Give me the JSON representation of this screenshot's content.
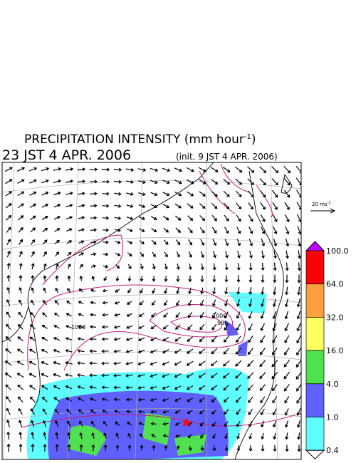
{
  "header": {
    "title": "PRECIPITATION INTENSITY (mm hour",
    "title_exponent": "-1",
    "title_close": ")",
    "valid_time": "23 JST 4 APR. 2006",
    "init_time": "(init. 9 JST 4 APR. 2006)"
  },
  "wind_legend": {
    "label": "20 ms",
    "exponent": "-1"
  },
  "contour_labels": [
    "1008",
    "1000",
    "996"
  ],
  "colorbar": {
    "levels": [
      "100.0",
      "64.0",
      "32.0",
      "16.0",
      "4.0",
      "1.0",
      "0.4"
    ],
    "colors": [
      "#ff0000",
      "#ffa040",
      "#ffff60",
      "#50e050",
      "#6060ff",
      "#60ffff"
    ],
    "over_color": "#c000ff",
    "under_color": "#ffffff"
  }
}
